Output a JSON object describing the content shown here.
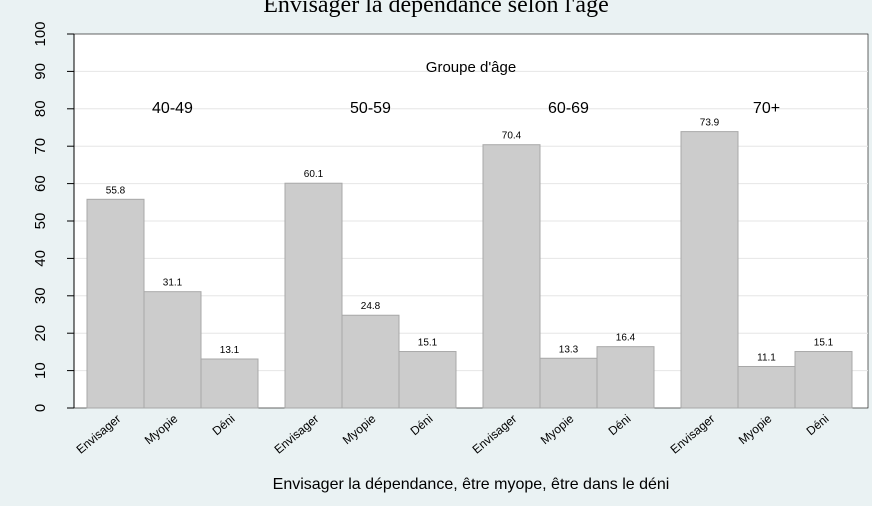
{
  "chart_data": {
    "type": "bar",
    "title": "Envisager la dépendance selon l'âge",
    "groups_title": "Groupe d'âge",
    "xlabel": "Envisager la dépendance, être myope, être dans le déni",
    "ylabel": "",
    "ylim": [
      0,
      100
    ],
    "yticks": [
      "0",
      "10",
      "20",
      "30",
      "40",
      "50",
      "60",
      "70",
      "80",
      "90",
      "100"
    ],
    "categories": [
      "Envisager",
      "Myopie",
      "Déni"
    ],
    "groups": [
      {
        "name": "40-49",
        "values": [
          55.8,
          31.1,
          13.1
        ],
        "labels": [
          "55.8",
          "31.1",
          "13.1"
        ]
      },
      {
        "name": "50-59",
        "values": [
          60.1,
          24.8,
          15.1
        ],
        "labels": [
          "60.1",
          "24.8",
          "15.1"
        ]
      },
      {
        "name": "60-69",
        "values": [
          70.4,
          13.3,
          16.4
        ],
        "labels": [
          "70.4",
          "13.3",
          "16.4"
        ]
      },
      {
        "name": "70+",
        "values": [
          73.9,
          11.1,
          15.1
        ],
        "labels": [
          "73.9",
          "11.1",
          "15.1"
        ]
      }
    ],
    "grid": true,
    "bar_color": "#cccccc",
    "background_color": "#eaf2f3"
  }
}
